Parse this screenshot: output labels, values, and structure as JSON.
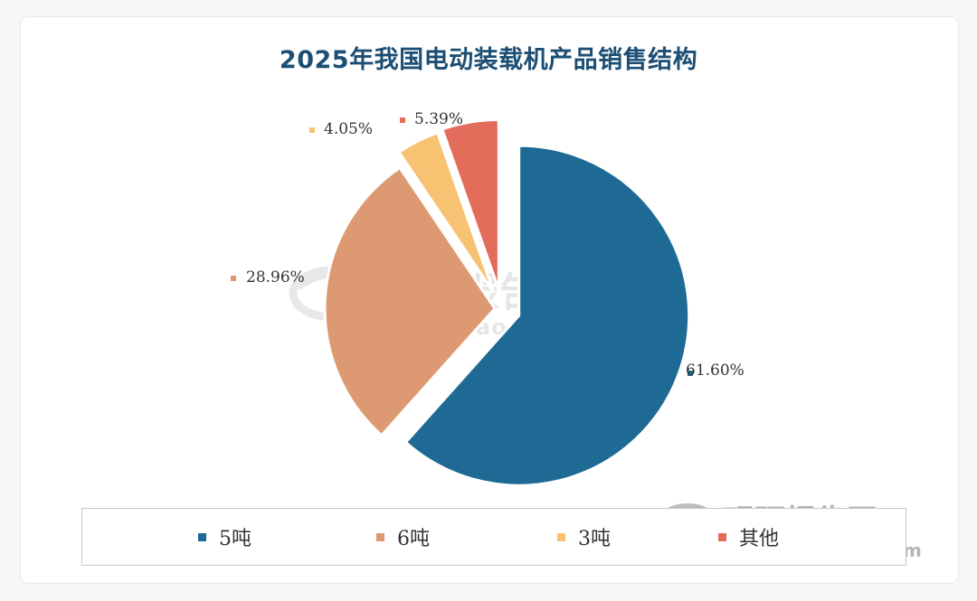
{
  "chart_data": {
    "type": "pie",
    "title": "2025年我国电动装载机产品销售结构",
    "categories": [
      "5吨",
      "6吨",
      "3吨",
      "其他"
    ],
    "values": [
      61.6,
      28.96,
      4.05,
      5.39
    ],
    "value_labels": [
      "61.60%",
      "28.96%",
      "4.05%",
      "5.39%"
    ],
    "colors": [
      "#1f6a94",
      "#dd9a72",
      "#f7c271",
      "#e36c5a"
    ],
    "exploded": true,
    "legend_position": "bottom"
  },
  "watermark": {
    "name": "观研报告网",
    "url": "chinabaogao.com"
  }
}
